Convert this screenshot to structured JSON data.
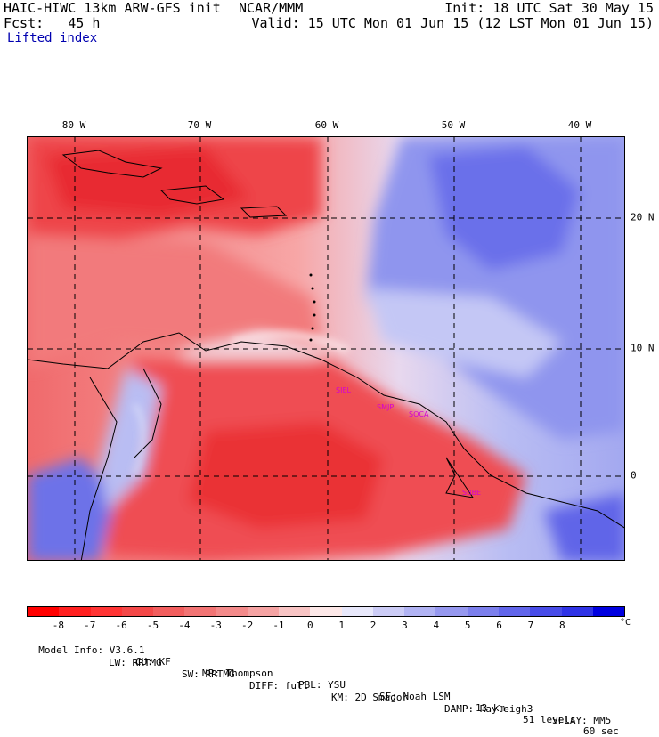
{
  "header": {
    "model_title": "HAIC-HIWC 13km ARW-GFS init",
    "org": "NCAR/MMM",
    "forecast": "Fcst:   45 h",
    "init": "Init: 18 UTC Sat 30 May 15",
    "valid": "Valid: 15 UTC Mon 01 Jun 15 (12 LST Mon 01 Jun 15)",
    "field": "Lifted index"
  },
  "map": {
    "lon_labels": [
      "80 W",
      "70 W",
      "60 W",
      "50 W",
      "40 W"
    ],
    "lat_labels": [
      "20 N",
      "10 N",
      "0"
    ],
    "stations": [
      "SIEL",
      "SMJP",
      "SOCA",
      "SBBE"
    ],
    "colors": {
      "strong_neg": "#e8202a",
      "mid_neg": "#f05a5e",
      "weak_neg": "#f79a9a",
      "neutral": "#fbe6e6",
      "weak_pos": "#c8ccf5",
      "mid_pos": "#8a90ec",
      "strong_pos": "#4c52e6",
      "station_label": "#d400d4"
    }
  },
  "colorbar": {
    "ticks": [
      "-8",
      "-7",
      "-6",
      "-5",
      "-4",
      "-3",
      "-2",
      "-1",
      "0",
      "1",
      "2",
      "3",
      "4",
      "5",
      "6",
      "7",
      "8"
    ],
    "unit": "°C",
    "colors": [
      "#ff0000",
      "#ff1f1f",
      "#ff3434",
      "#f44848",
      "#f25e5e",
      "#f27474",
      "#f38a8a",
      "#f5a3a3",
      "#f8c4c4",
      "#fde8e8",
      "#e8e8fb",
      "#ccccf6",
      "#b1b3f3",
      "#9698ef",
      "#7c7fec",
      "#6165ea",
      "#484ce8",
      "#2f33e6",
      "#0000e0"
    ]
  },
  "footer": {
    "line1": [
      "Model Info: V3.6.1",
      "CU: KF",
      "MP: Thompson",
      "PBL: YSU",
      "SF: Noah LSM",
      "13 km",
      "51 levels",
      "60 sec"
    ],
    "line2": [
      "LW: RRTMG",
      "SW: RRTMG",
      "DIFF: full",
      "KM: 2D Smagor",
      "DAMP: Rayleigh3",
      "SFLAY: MM5"
    ]
  }
}
